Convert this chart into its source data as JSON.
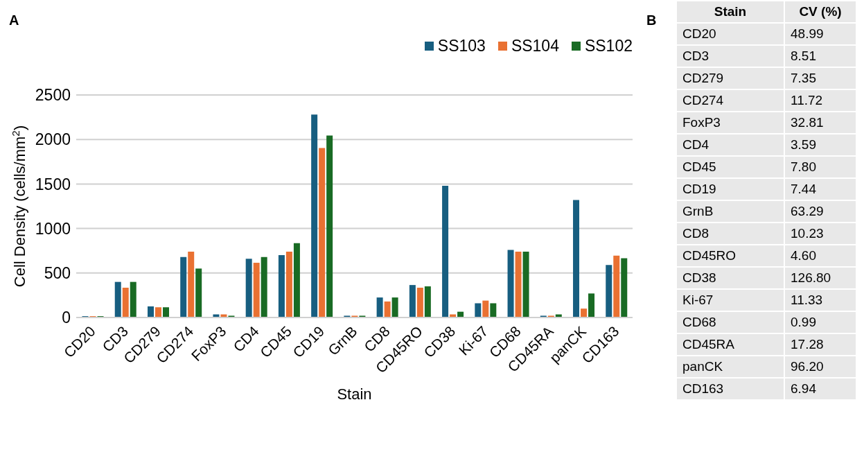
{
  "chart_data": [
    {
      "type": "bar",
      "title": "A",
      "xlabel": "Stain",
      "ylabel": "Cell Density (cells/mm$^{2}$)",
      "categories": [
        "CD20",
        "CD3",
        "CD279",
        "CD274",
        "FoxP3",
        "CD4",
        "CD45",
        "CD19",
        "GrnB",
        "CD8",
        "CD45RO",
        "CD38",
        "Ki-67",
        "CD68",
        "CD45RA",
        "panCK",
        "CD163"
      ],
      "series": [
        {
          "name": "SS103",
          "color": "#175e80",
          "values": [
            15,
            400,
            125,
            680,
            35,
            660,
            700,
            2280,
            20,
            225,
            365,
            1480,
            160,
            760,
            20,
            1320,
            590
          ]
        },
        {
          "name": "SS104",
          "color": "#e97132",
          "values": [
            15,
            335,
            115,
            740,
            35,
            615,
            740,
            1905,
            20,
            180,
            335,
            35,
            190,
            740,
            20,
            100,
            695
          ]
        },
        {
          "name": "SS102",
          "color": "#196b24",
          "values": [
            15,
            400,
            115,
            550,
            20,
            680,
            835,
            2045,
            20,
            225,
            350,
            65,
            160,
            740,
            35,
            270,
            665
          ]
        }
      ],
      "ylim": [
        0,
        2500
      ],
      "yticks": [
        0,
        500,
        1000,
        1500,
        2000,
        2500
      ],
      "grid": "y",
      "legend": "top right"
    },
    {
      "type": "other",
      "title": "B",
      "xlabel": "Stain",
      "ylabel": "CV (%)",
      "categories": [
        "CD20",
        "CD3",
        "CD279",
        "CD274",
        "FoxP3",
        "CD4",
        "CD45",
        "CD19",
        "GrnB",
        "CD8",
        "CD45RO",
        "CD38",
        "Ki-67",
        "CD68",
        "CD45RA",
        "panCK",
        "CD163"
      ],
      "values": [
        48.99,
        8.51,
        7.35,
        11.72,
        32.81,
        3.59,
        7.8,
        7.44,
        63.29,
        10.23,
        4.6,
        126.8,
        11.33,
        0.99,
        17.28,
        96.2,
        6.94
      ],
      "value_labels": [
        "48.99",
        "8.51",
        "7.35",
        "11.72",
        "32.81",
        "3.59",
        "7.80",
        "7.44",
        "63.29",
        "10.23",
        "4.60",
        "126.80",
        "11.33",
        "0.99",
        "17.28",
        "96.20",
        "6.94"
      ],
      "data_labels": true
    }
  ]
}
